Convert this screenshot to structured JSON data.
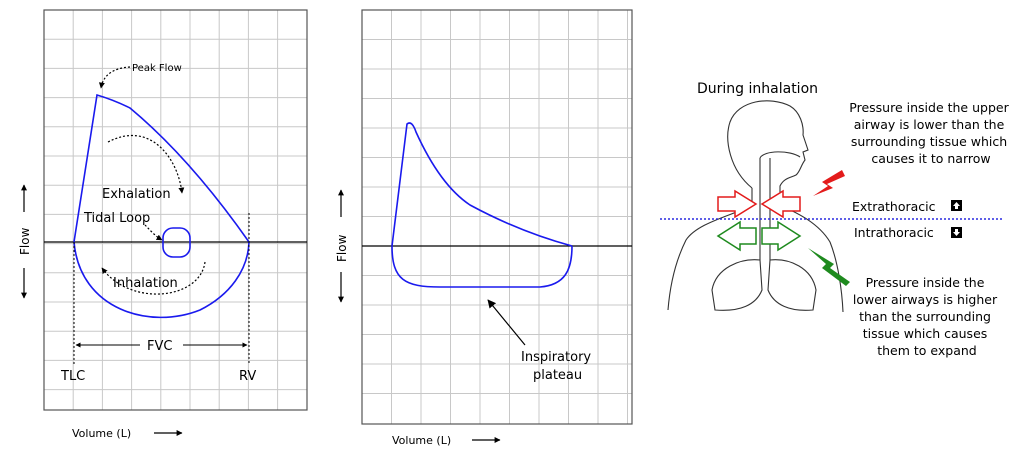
{
  "left_panel": {
    "flow_axis": "Flow",
    "volume_axis": "Volume (L)",
    "peak_flow": "Peak Flow",
    "exhalation": "Exhalation",
    "tidal_loop": "Tidal Loop",
    "inhalation": "Inhalation",
    "fvc": "FVC",
    "tlc": "TLC",
    "rv": "RV"
  },
  "middle_panel": {
    "flow_axis": "Flow",
    "volume_axis": "Volume (L)",
    "plateau_line1": "Inspiratory",
    "plateau_line2": "plateau"
  },
  "right_panel": {
    "title": "During inhalation",
    "upper_note": [
      "Pressure inside the upper",
      "airway is lower than the",
      "surrounding tissue which",
      "causes it to narrow"
    ],
    "extrathoracic": "Extrathoracic",
    "intrathoracic": "Intrathoracic",
    "lower_note": [
      "Pressure inside the",
      "lower airways is higher",
      "than the surrounding",
      "tissue which causes",
      "them to expand"
    ]
  },
  "colors": {
    "loop": "#1a1aee",
    "grid": "#c8c8c8",
    "narrow_arrow": "#e31b1b",
    "expand_arrow": "#1e8a1e",
    "divider": "#2a2ae0"
  }
}
